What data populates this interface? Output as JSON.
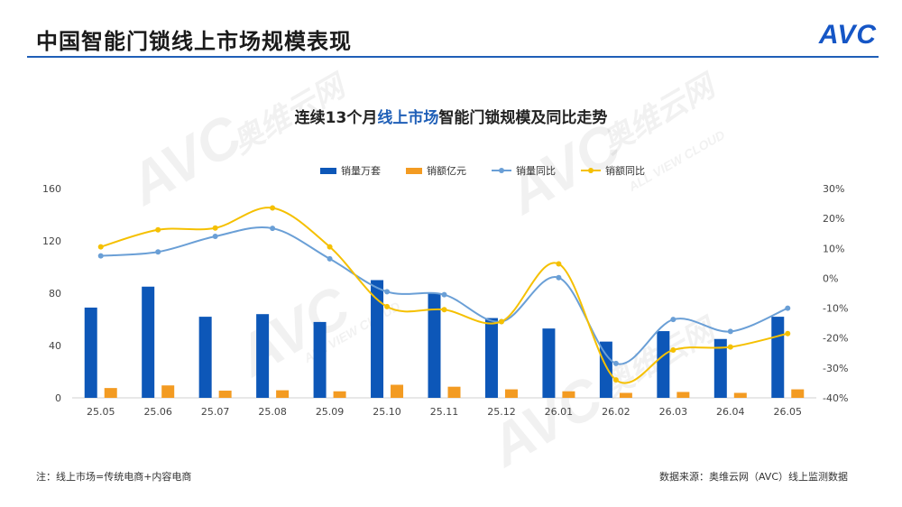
{
  "header": {
    "title": "中国智能门锁线上市场规模表现",
    "logo_text": "AVC"
  },
  "watermark": {
    "brand": "AVC",
    "cn": "奥维云网",
    "en": "ALL VIEW CLOUD"
  },
  "footer": {
    "note": "注：线上市场=传统电商+内容电商",
    "source": "数据来源：奥维云网（AVC）线上监测数据"
  },
  "colors": {
    "accent_blue": "#1f5fb7",
    "bar_volume": "#0d57b8",
    "bar_amount": "#f39b22",
    "line_volume_yoy": "#6a9fd6",
    "line_amount_yoy": "#f5c000",
    "logo_blue": "#1556c6",
    "logo_yellow": "#f0b400"
  },
  "chart_data": {
    "type": "bar",
    "title_prefix": "连续13个月",
    "title_highlight": "线上市场",
    "title_suffix": "智能门锁规模及同比走势",
    "categories": [
      "25.05",
      "25.06",
      "25.07",
      "25.08",
      "25.09",
      "25.10",
      "25.11",
      "25.12",
      "26.01",
      "26.02",
      "26.03",
      "26.04",
      "26.05"
    ],
    "series": [
      {
        "name": "销量万套",
        "type": "bar",
        "axis": "left",
        "values": [
          69,
          85,
          62,
          64,
          58,
          90,
          80,
          61,
          53,
          43,
          51,
          45,
          62
        ]
      },
      {
        "name": "销额亿元",
        "type": "bar",
        "axis": "left",
        "values": [
          7.5,
          9.5,
          5.5,
          5.8,
          5.0,
          10.0,
          8.5,
          6.5,
          5.0,
          3.8,
          4.5,
          3.8,
          6.5
        ]
      },
      {
        "name": "销量同比",
        "type": "line",
        "axis": "right",
        "values": [
          7.5,
          8.8,
          14.0,
          16.7,
          6.5,
          -4.5,
          -5.5,
          -14.5,
          0.2,
          -28.5,
          -13.8,
          -17.8,
          -10.0
        ]
      },
      {
        "name": "销额同比",
        "type": "line",
        "axis": "right",
        "values": [
          10.5,
          16.2,
          16.8,
          23.5,
          10.5,
          -9.5,
          -10.5,
          -14.5,
          4.8,
          -34.0,
          -24.0,
          -23.0,
          -18.5
        ]
      }
    ],
    "ylim_left": [
      0,
      160
    ],
    "yticks_left": [
      "0",
      "40",
      "80",
      "120",
      "160"
    ],
    "yticks_left_values": [
      0,
      40,
      80,
      120,
      160
    ],
    "ylim_right": [
      -40,
      30
    ],
    "yticks_right": [
      "-40%",
      "-30%",
      "-20%",
      "-10%",
      "0%",
      "10%",
      "20%",
      "30%"
    ],
    "yticks_right_values": [
      -40,
      -30,
      -20,
      -10,
      0,
      10,
      20,
      30
    ],
    "legend_position": "top-center",
    "grid": false
  }
}
